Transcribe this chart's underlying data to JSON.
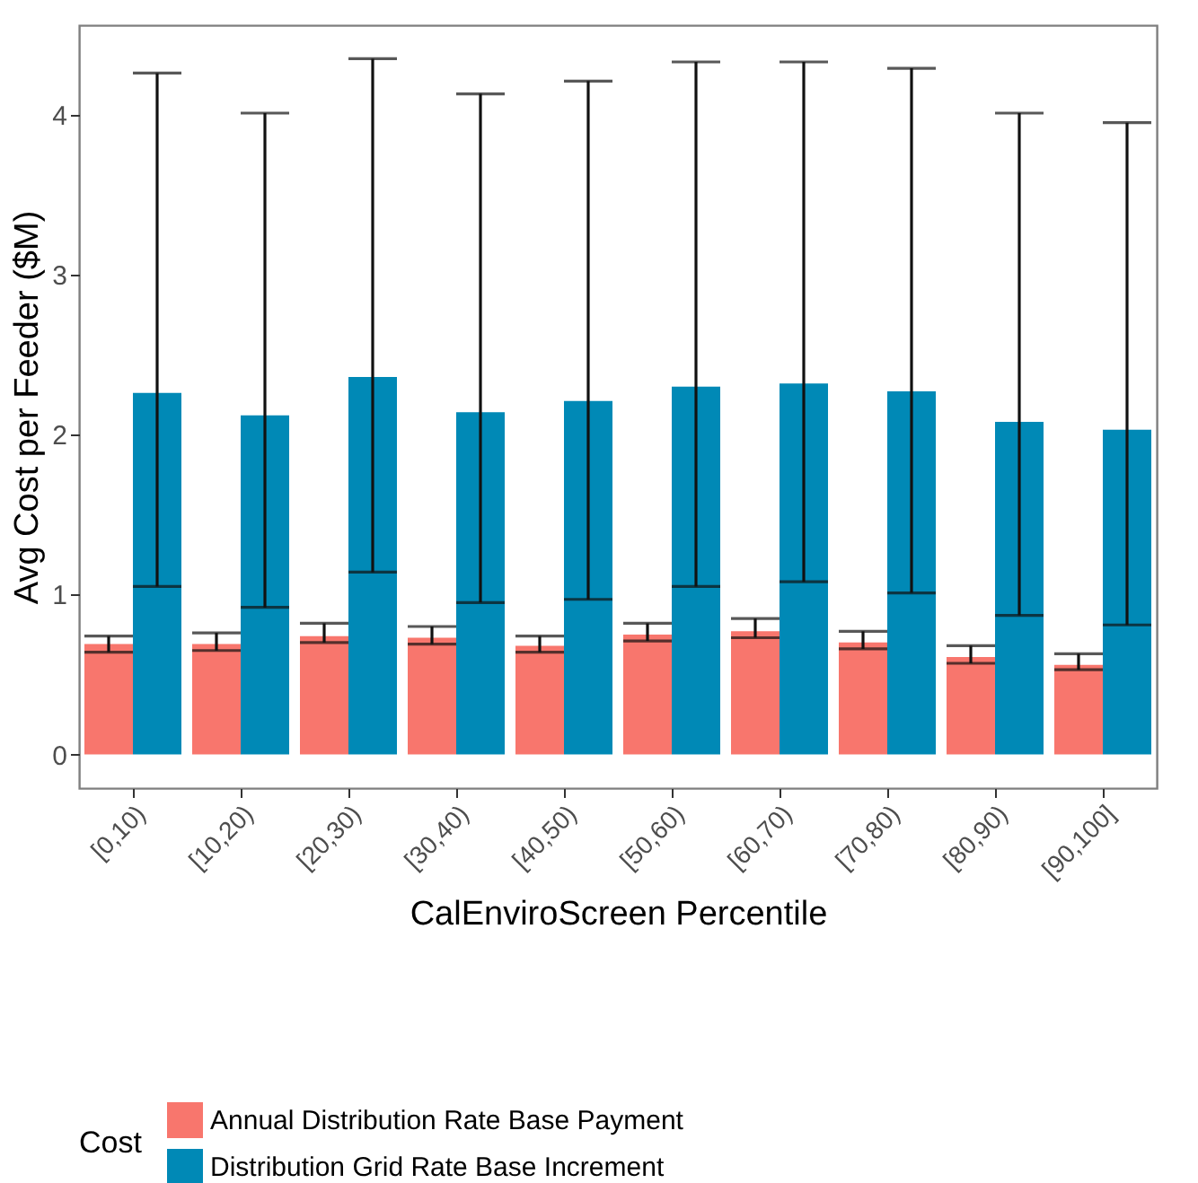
{
  "chart_data": {
    "type": "bar",
    "xlabel": "CalEnviroScreen Percentile",
    "ylabel": "Avg Cost per Feeder ($M)",
    "legend_title": "Cost",
    "categories": [
      "[0,10)",
      "[10,20)",
      "[20,30)",
      "[30,40)",
      "[40,50)",
      "[50,60)",
      "[60,70)",
      "[70,80)",
      "[80,90)",
      "[90,100]"
    ],
    "series": [
      {
        "name": "Annual Distribution Rate Base Payment",
        "color": "#f8766d",
        "values": [
          0.69,
          0.69,
          0.74,
          0.73,
          0.68,
          0.75,
          0.77,
          0.7,
          0.61,
          0.56
        ],
        "errors": [
          [
            0.64,
            0.74
          ],
          [
            0.65,
            0.76
          ],
          [
            0.7,
            0.82
          ],
          [
            0.69,
            0.8
          ],
          [
            0.64,
            0.74
          ],
          [
            0.71,
            0.82
          ],
          [
            0.73,
            0.85
          ],
          [
            0.66,
            0.77
          ],
          [
            0.57,
            0.68
          ],
          [
            0.53,
            0.63
          ]
        ]
      },
      {
        "name": "Distribution Grid Rate Base Increment",
        "color": "#0089b6",
        "values": [
          2.26,
          2.12,
          2.36,
          2.14,
          2.21,
          2.3,
          2.32,
          2.27,
          2.08,
          2.03
        ],
        "errors": [
          [
            1.05,
            4.26
          ],
          [
            0.92,
            4.01
          ],
          [
            1.14,
            4.35
          ],
          [
            0.95,
            4.13
          ],
          [
            0.97,
            4.21
          ],
          [
            1.05,
            4.33
          ],
          [
            1.08,
            4.33
          ],
          [
            1.01,
            4.29
          ],
          [
            0.87,
            4.01
          ],
          [
            0.81,
            3.95
          ]
        ]
      }
    ],
    "ylim": [
      -0.21,
      4.56
    ],
    "yticks": [
      0,
      1,
      2,
      3,
      4
    ],
    "grid": false,
    "legend": "bottom"
  }
}
